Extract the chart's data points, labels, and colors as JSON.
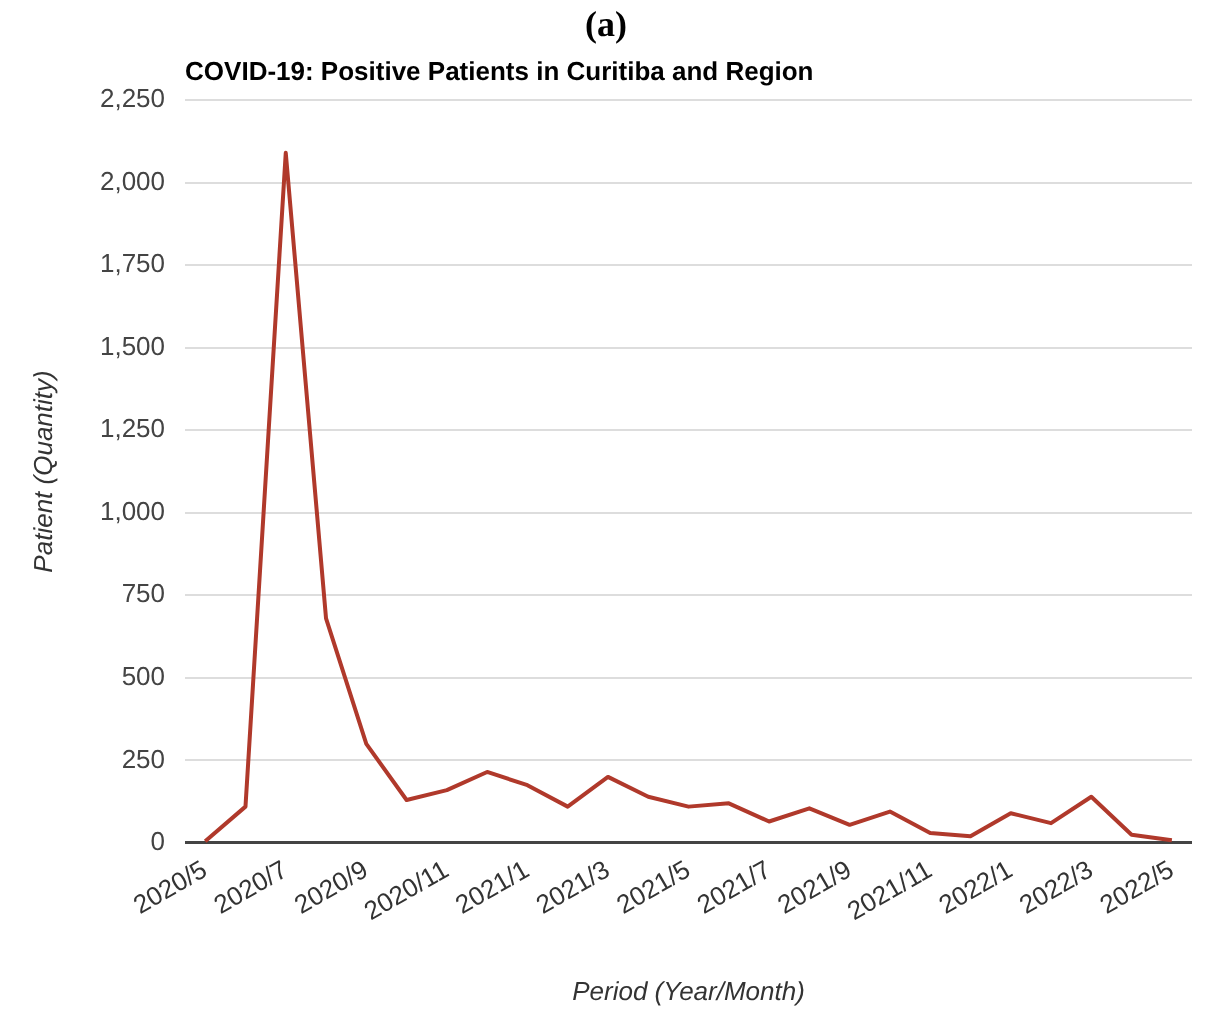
{
  "chart_data": {
    "type": "line",
    "title": "COVID-19: Positive Patients in Curitiba and Region",
    "xlabel": "Period (Year/Month)",
    "ylabel": "Patient (Quantity)",
    "annotations": [
      "(a)"
    ],
    "categories": [
      "2020/5",
      null,
      "2020/7",
      null,
      "2020/9",
      null,
      "2020/11",
      null,
      "2021/1",
      null,
      "2021/3",
      null,
      "2021/5",
      null,
      "2021/7",
      null,
      "2021/9",
      null,
      "2021/11",
      null,
      "2022/1",
      null,
      "2022/3",
      null,
      "2022/5"
    ],
    "series": [
      {
        "color": "#b0392b",
        "values": [
          5,
          110,
          2090,
          680,
          300,
          130,
          160,
          215,
          175,
          110,
          200,
          140,
          110,
          120,
          65,
          105,
          55,
          95,
          30,
          20,
          90,
          60,
          140,
          25,
          8
        ]
      }
    ],
    "ylim": [
      0,
      2250
    ],
    "yticks": [
      {
        "value": 0,
        "label": "0"
      },
      {
        "value": 250,
        "label": "250"
      },
      {
        "value": 500,
        "label": "500"
      },
      {
        "value": 750,
        "label": "750"
      },
      {
        "value": 1000,
        "label": "1,000"
      },
      {
        "value": 1250,
        "label": "1,250"
      },
      {
        "value": 1500,
        "label": "1,500"
      },
      {
        "value": 1750,
        "label": "1,750"
      },
      {
        "value": 2000,
        "label": "2,000"
      },
      {
        "value": 2250,
        "label": "2,250"
      }
    ],
    "grid": "y",
    "legend": false,
    "marker": "none",
    "line_style": "solid"
  }
}
